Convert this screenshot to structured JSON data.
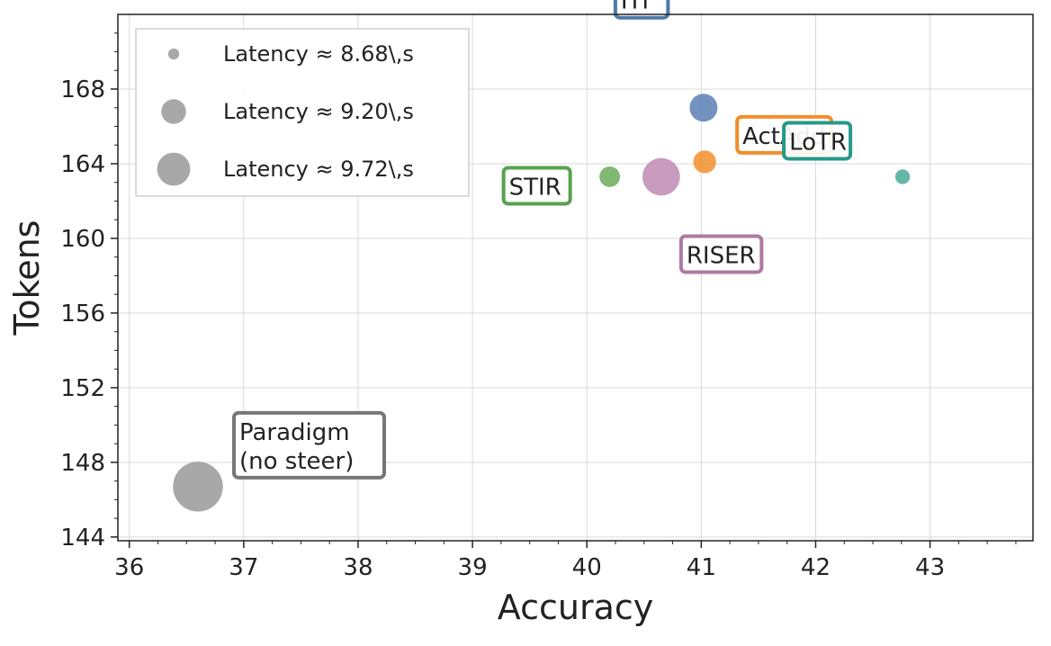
{
  "chart_data": {
    "type": "scatter",
    "title": "",
    "xlabel": "Accuracy",
    "ylabel": "Tokens",
    "xlim": [
      35.9,
      43.9
    ],
    "ylim": [
      143.8,
      172
    ],
    "xticks": [
      36,
      37,
      38,
      39,
      40,
      41,
      42,
      43
    ],
    "yticks": [
      144,
      148,
      152,
      156,
      160,
      164,
      168
    ],
    "grid": true,
    "size_encoding": "Latency",
    "legend": {
      "placement": "top-left",
      "entries": [
        {
          "label": "Latency  ≈  8.68\\,s",
          "latency": 8.68
        },
        {
          "label": "Latency  ≈  9.20\\,s",
          "latency": 9.2
        },
        {
          "label": "Latency  ≈  9.72\\,s",
          "latency": 9.72
        }
      ]
    },
    "series": [
      {
        "name": "Paradigm\n(no steer)",
        "x": 36.6,
        "y": 146.7,
        "latency": 11.2,
        "color": "#999999",
        "label_anchor": "right-above"
      },
      {
        "name": "STIR",
        "x": 40.2,
        "y": 163.3,
        "latency": 9.0,
        "color": "#6aab5c",
        "label_anchor": "left"
      },
      {
        "name": "ITI",
        "x": 41.02,
        "y": 167.0,
        "latency": 9.38,
        "color": "#5b7fb4",
        "label_anchor": "left-below"
      },
      {
        "name": "ActAdd",
        "x": 41.03,
        "y": 164.1,
        "latency": 9.1,
        "color": "#f28e2b",
        "label_anchor": "right-above"
      },
      {
        "name": "LoTR",
        "x": 42.76,
        "y": 163.3,
        "latency": 8.78,
        "color": "#4aab98",
        "label_anchor": "left-above"
      },
      {
        "name": "RISER",
        "x": 40.65,
        "y": 163.3,
        "latency": 10.05,
        "color": "#c08ab4",
        "label_anchor": "right-below"
      }
    ],
    "label_colors": {
      "Paradigm\n(no steer)": "#777777",
      "STIR": "#59a14f",
      "ITI": "#4e79a7",
      "ActAdd": "#f28e2b",
      "LoTR": "#26998a",
      "RISER": "#b07aa1"
    }
  }
}
